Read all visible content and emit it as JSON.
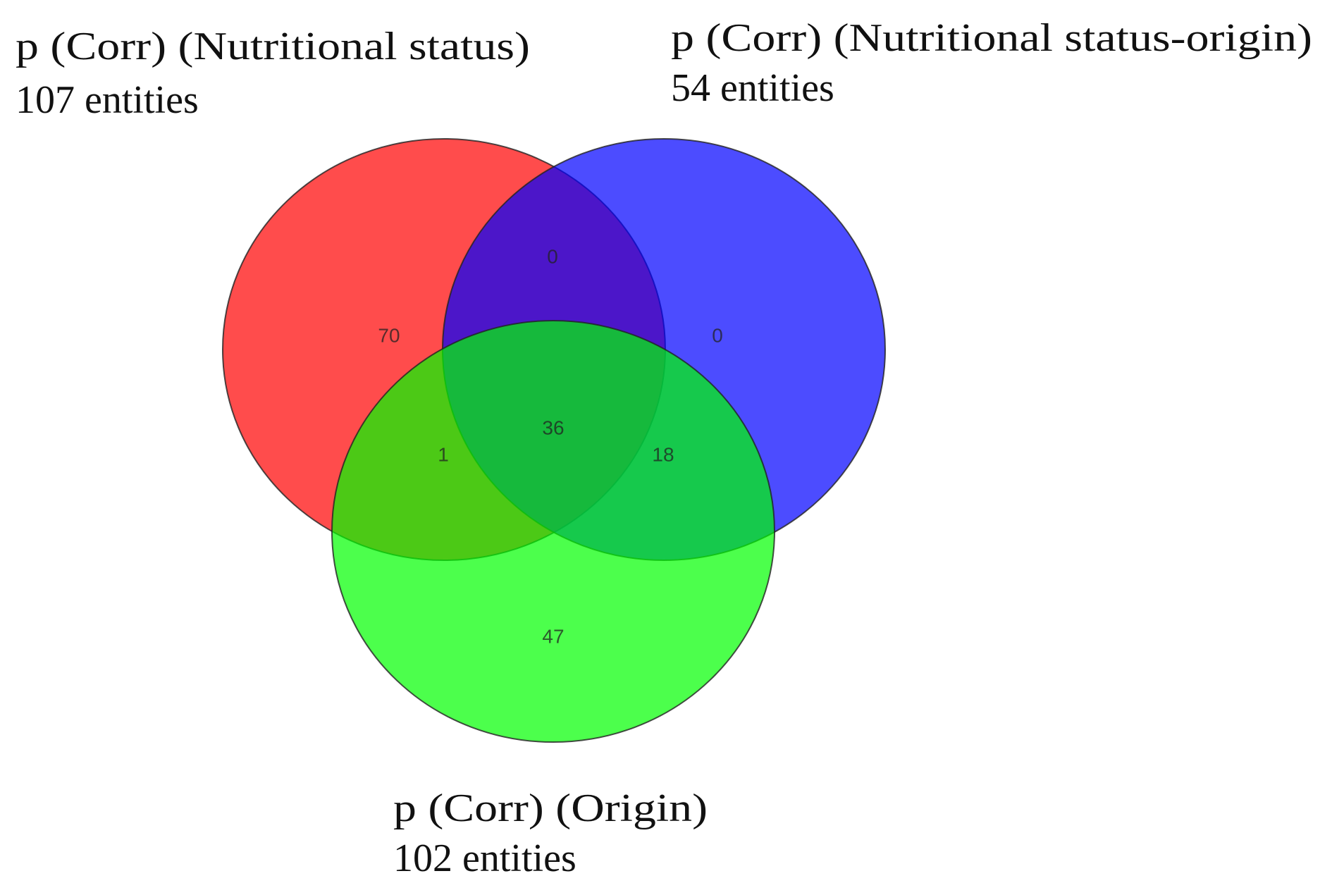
{
  "chart_data": {
    "type": "venn",
    "sets": [
      {
        "name": "p (Corr) (Nutritional status)",
        "size_label": "107 entities",
        "color": "#ff0000"
      },
      {
        "name": "p (Corr) (Nutritional status-origin)",
        "size_label": "54 entities",
        "color": "#0000ff"
      },
      {
        "name": "p (Corr) (Origin)",
        "size_label": "102 entities",
        "color": "#00ff00"
      }
    ],
    "regions": {
      "only_1": 70,
      "only_2": 0,
      "only_3": 47,
      "1_2": 0,
      "1_3": 1,
      "2_3": 18,
      "1_2_3": 36
    }
  }
}
